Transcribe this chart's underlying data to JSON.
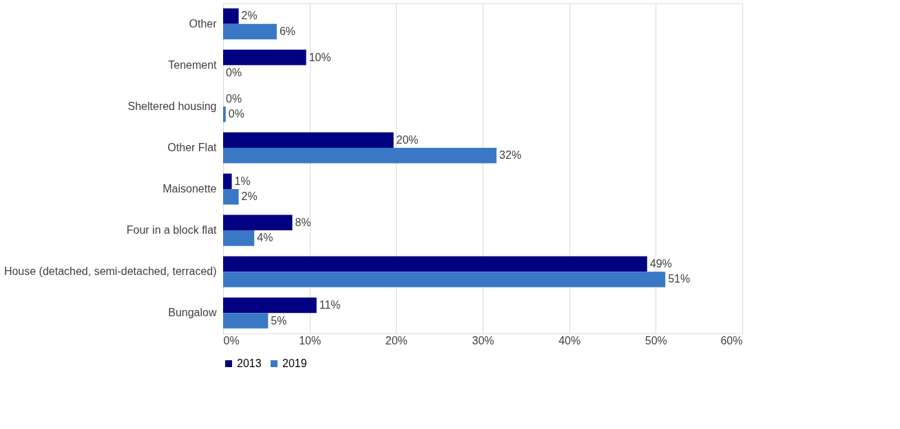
{
  "chart_data": {
    "type": "bar",
    "orientation": "horizontal",
    "categories": [
      "Other",
      "Tenement",
      "Sheltered housing",
      "Other Flat",
      "Maisonette",
      "Four in a block flat",
      "House (detached, semi-detached, terraced)",
      "Bungalow"
    ],
    "series": [
      {
        "name": "2013",
        "color": "#000080",
        "values": [
          1.8,
          9.6,
          0,
          19.7,
          1.0,
          8.0,
          49.0,
          10.8
        ],
        "value_labels": [
          "2%",
          "10%",
          "0%",
          "20%",
          "1%",
          "8%",
          "49%",
          "11%"
        ]
      },
      {
        "name": "2019",
        "color": "#3a78c6",
        "values": [
          6.2,
          0,
          0.3,
          31.6,
          1.8,
          3.6,
          51.1,
          5.2
        ],
        "value_labels": [
          "6%",
          "0%",
          "0%",
          "32%",
          "2%",
          "4%",
          "51%",
          "5%"
        ]
      }
    ],
    "xlim": [
      0,
      60
    ],
    "xticks": [
      {
        "value": 0,
        "label": "0%"
      },
      {
        "value": 10,
        "label": "10%"
      },
      {
        "value": 20,
        "label": "20%"
      },
      {
        "value": 30,
        "label": "30%"
      },
      {
        "value": 40,
        "label": "40%"
      },
      {
        "value": 50,
        "label": "50%"
      },
      {
        "value": 60,
        "label": "60%"
      }
    ],
    "grid": "x",
    "legend": "bottom"
  }
}
